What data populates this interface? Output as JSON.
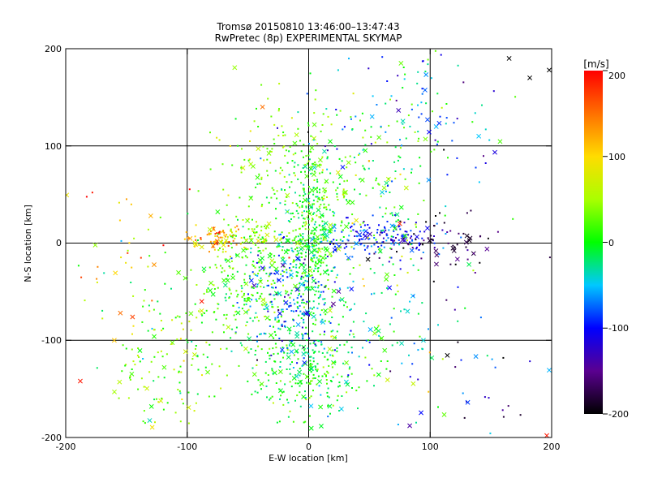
{
  "chart_data": {
    "type": "scatter",
    "title": "Tromsø 20150810 13:46:00–13:47:43",
    "subtitle": "RwPretec (8p) EXPERIMENTAL SKYMAP",
    "xlabel": "E-W location [km]",
    "ylabel": "N-S location [km]",
    "xlim": [
      -200,
      200
    ],
    "ylim": [
      -200,
      200
    ],
    "grid": true,
    "x_ticks": [
      "-200",
      "-100",
      "0",
      "100",
      "200"
    ],
    "y_ticks": [
      "-200",
      "-100",
      "0",
      "100",
      "200"
    ],
    "colorbar": {
      "label": "[m/s]",
      "range": [
        -200,
        200
      ],
      "ticks": [
        "-200",
        "-100",
        "0",
        "100",
        "200"
      ],
      "colormap": "rainbow: black (-200), purple, blue (-100), cyan, green (0), yellow (100), orange, red (200)"
    },
    "marker_types": [
      "dot",
      "cross"
    ],
    "clusters": [
      {
        "cx": 0,
        "cy": 5,
        "sx": 10,
        "sy": 45,
        "v": 0,
        "sv": 25,
        "n": 380
      },
      {
        "cx": -55,
        "cy": -40,
        "sx": 25,
        "sy": 35,
        "v": 15,
        "sv": 25,
        "n": 260
      },
      {
        "cx": -75,
        "cy": 5,
        "sx": 12,
        "sy": 6,
        "v": 130,
        "sv": 30,
        "n": 70
      },
      {
        "cx": -45,
        "cy": 5,
        "sx": 15,
        "sy": 8,
        "v": 55,
        "sv": 25,
        "n": 60
      },
      {
        "cx": -5,
        "cy": -130,
        "sx": 25,
        "sy": 25,
        "v": 0,
        "sv": 25,
        "n": 260
      },
      {
        "cx": -15,
        "cy": -60,
        "sx": 20,
        "sy": 30,
        "v": -70,
        "sv": 40,
        "n": 200
      },
      {
        "cx": 60,
        "cy": 5,
        "sx": 22,
        "sy": 10,
        "v": -95,
        "sv": 25,
        "n": 160
      },
      {
        "cx": 110,
        "cy": 0,
        "sx": 25,
        "sy": 15,
        "v": -170,
        "sv": 25,
        "n": 70
      },
      {
        "cx": 30,
        "cy": 40,
        "sx": 35,
        "sy": 45,
        "v": 20,
        "sv": 30,
        "n": 200
      },
      {
        "cx": -20,
        "cy": 80,
        "sx": 30,
        "sy": 35,
        "v": 40,
        "sv": 25,
        "n": 130
      },
      {
        "cx": 80,
        "cy": 120,
        "sx": 40,
        "sy": 40,
        "v": -40,
        "sv": 60,
        "n": 130
      },
      {
        "cx": -120,
        "cy": -120,
        "sx": 25,
        "sy": 40,
        "v": 30,
        "sv": 35,
        "n": 140
      },
      {
        "cx": 60,
        "cy": -90,
        "sx": 35,
        "sy": 40,
        "v": -10,
        "sv": 50,
        "n": 110
      },
      {
        "cx": -150,
        "cy": 0,
        "sx": 30,
        "sy": 40,
        "v": 90,
        "sv": 70,
        "n": 40
      },
      {
        "cx": 140,
        "cy": -150,
        "sx": 35,
        "sy": 40,
        "v": -110,
        "sv": 60,
        "n": 40
      }
    ],
    "notable_points": [
      {
        "x": 165,
        "y": 190,
        "v": -200,
        "m": "cross"
      },
      {
        "x": 182,
        "y": 170,
        "v": -200,
        "m": "cross"
      },
      {
        "x": 198,
        "y": 178,
        "v": -200,
        "m": "cross"
      },
      {
        "x": -188,
        "y": -142,
        "v": 190,
        "m": "cross"
      },
      {
        "x": -178,
        "y": 52,
        "v": 190,
        "m": "dot"
      },
      {
        "x": -155,
        "y": -72,
        "v": 150,
        "m": "cross"
      },
      {
        "x": -145,
        "y": -76,
        "v": 170,
        "m": "cross"
      },
      {
        "x": -160,
        "y": -100,
        "v": 110,
        "m": "cross"
      },
      {
        "x": -130,
        "y": 28,
        "v": 120,
        "m": "cross"
      },
      {
        "x": -88,
        "y": -60,
        "v": 190,
        "m": "cross"
      },
      {
        "x": -38,
        "y": 140,
        "v": 150,
        "m": "cross"
      },
      {
        "x": 76,
        "y": 185,
        "v": 30,
        "m": "cross"
      },
      {
        "x": -16,
        "y": -15,
        "v": 190,
        "m": "dot"
      },
      {
        "x": 75,
        "y": 20,
        "v": 180,
        "m": "cross"
      },
      {
        "x": 196,
        "y": -198,
        "v": 190,
        "m": "cross"
      },
      {
        "x": 132,
        "y": -22,
        "v": -15,
        "m": "cross"
      },
      {
        "x": 140,
        "y": 110,
        "v": -50,
        "m": "cross"
      }
    ]
  }
}
